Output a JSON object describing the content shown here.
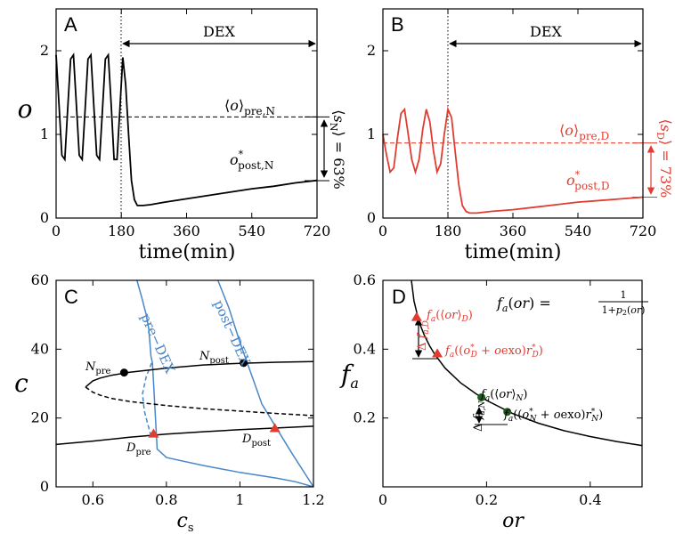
{
  "colors": {
    "black": "#000000",
    "red": "#e03c31",
    "blue": "#4a86c8",
    "green": "#1e5a1e"
  },
  "chart_data": [
    {
      "panel": "A",
      "type": "line",
      "xlabel": "time(min)",
      "ylabel": "o",
      "xlim": [
        0,
        720
      ],
      "ylim": [
        0,
        2.5
      ],
      "xticks": [
        "0",
        "180",
        "360",
        "540",
        "720"
      ],
      "yticks": [
        "0",
        "1",
        "2"
      ],
      "band_label": "DEX",
      "dex_start": 180,
      "series": [
        {
          "color": "#000000",
          "style": "solid",
          "x": [
            0,
            8,
            16,
            24,
            32,
            40,
            48,
            56,
            64,
            72,
            80,
            88,
            96,
            104,
            112,
            120,
            128,
            136,
            144,
            152,
            160,
            168,
            176,
            184,
            192,
            200,
            208,
            216,
            224,
            240,
            260,
            300,
            360,
            420,
            480,
            540,
            600,
            660,
            720
          ],
          "y": [
            1.95,
            1.35,
            0.75,
            0.7,
            1.3,
            1.9,
            1.95,
            1.35,
            0.75,
            0.7,
            1.3,
            1.9,
            1.95,
            1.35,
            0.75,
            0.7,
            1.3,
            1.9,
            1.95,
            1.35,
            0.7,
            0.7,
            1.3,
            1.92,
            1.6,
            1.0,
            0.45,
            0.22,
            0.15,
            0.15,
            0.16,
            0.19,
            0.23,
            0.27,
            0.31,
            0.35,
            0.38,
            0.42,
            0.45
          ]
        }
      ],
      "hlines": [
        {
          "y": 1.2,
          "style": "dashed"
        }
      ],
      "annotations": {
        "mean_label": "⟨o⟩pre,N",
        "post_label": "o*post,N",
        "pct_label": "⟨sN⟩ = 63%"
      },
      "arrow_range": [
        0.45,
        1.2
      ]
    },
    {
      "panel": "B",
      "type": "line",
      "xlabel": "time(min)",
      "xlim": [
        0,
        720
      ],
      "ylim": [
        0,
        2.5
      ],
      "xticks": [
        "0",
        "180",
        "360",
        "540",
        "720"
      ],
      "yticks": [
        "0",
        "1",
        "2"
      ],
      "band_label": "DEX",
      "dex_start": 180,
      "series": [
        {
          "color": "#e03c31",
          "style": "solid",
          "x": [
            0,
            10,
            20,
            30,
            40,
            50,
            60,
            70,
            80,
            90,
            100,
            110,
            120,
            130,
            140,
            150,
            160,
            170,
            180,
            190,
            200,
            210,
            220,
            230,
            240,
            260,
            300,
            360,
            420,
            480,
            540,
            600,
            660,
            720
          ],
          "y": [
            1.0,
            0.75,
            0.55,
            0.6,
            0.95,
            1.25,
            1.3,
            1.0,
            0.7,
            0.55,
            0.7,
            1.05,
            1.3,
            1.15,
            0.8,
            0.55,
            0.65,
            1.0,
            1.3,
            1.2,
            0.8,
            0.4,
            0.15,
            0.08,
            0.06,
            0.06,
            0.08,
            0.1,
            0.13,
            0.16,
            0.19,
            0.21,
            0.23,
            0.25
          ]
        }
      ],
      "hlines": [
        {
          "y": 0.9,
          "style": "dashed"
        }
      ],
      "annotations": {
        "mean_label": "⟨o⟩pre,D",
        "post_label": "o*post,D",
        "pct_label": "⟨sD⟩ = 73%"
      },
      "arrow_range": [
        0.25,
        0.9
      ]
    },
    {
      "panel": "C",
      "type": "line",
      "xlabel": "cs",
      "ylabel": "c",
      "xlim": [
        0.5,
        1.2
      ],
      "ylim": [
        0,
        60
      ],
      "xticks": [
        "0.6",
        "0.8",
        "1",
        "1.2"
      ],
      "yticks": [
        "0",
        "20",
        "40",
        "60"
      ],
      "series": [
        {
          "name": "pre−DEX",
          "color": "#4a86c8",
          "style": "solid",
          "x": [
            0.72,
            0.733,
            0.745,
            0.752,
            0.755,
            0.758,
            0.762,
            0.775,
            0.8,
            0.9,
            1.0,
            1.1,
            1.15,
            1.2
          ],
          "y": [
            60,
            55,
            50,
            46,
            42,
            38,
            36,
            11,
            8.5,
            6.2,
            4.2,
            2.5,
            1.5,
            0
          ]
        },
        {
          "name": "pre−DEX (unstable)",
          "color": "#4a86c8",
          "style": "dashed",
          "x": [
            0.76,
            0.745,
            0.735,
            0.74,
            0.75,
            0.76
          ],
          "y": [
            36,
            32,
            27,
            22,
            18,
            14
          ]
        },
        {
          "name": "post−DEX",
          "color": "#4a86c8",
          "style": "solid",
          "x": [
            0.94,
            0.97,
            1.0,
            1.03,
            1.06,
            1.1,
            1.14,
            1.2
          ],
          "y": [
            60,
            52,
            42,
            33,
            24,
            17,
            10,
            0
          ]
        },
        {
          "name": "upper-branch",
          "color": "#000000",
          "style": "solid",
          "x": [
            0.58,
            0.6,
            0.62,
            0.65,
            0.7,
            0.8,
            0.9,
            1.0,
            1.1,
            1.2
          ],
          "y": [
            29,
            30.8,
            31.6,
            32.4,
            33.3,
            34.5,
            35.4,
            35.9,
            36.2,
            36.4
          ]
        },
        {
          "name": "middle-branch",
          "color": "#000000",
          "style": "dashed",
          "x": [
            0.58,
            0.6,
            0.62,
            0.65,
            0.7,
            0.8,
            0.9,
            1.0,
            1.1,
            1.2
          ],
          "y": [
            29,
            27.5,
            26.6,
            25.7,
            24.8,
            23.6,
            22.7,
            22.0,
            21.3,
            20.7
          ]
        },
        {
          "name": "lower-branch",
          "color": "#000000",
          "style": "solid",
          "x": [
            0.5,
            0.6,
            0.7,
            0.8,
            0.9,
            1.0,
            1.1,
            1.2
          ],
          "y": [
            12.3,
            13.3,
            14.4,
            15.3,
            16.0,
            16.6,
            17.1,
            17.6
          ]
        }
      ],
      "points": [
        {
          "label": "Npre",
          "x": 0.685,
          "y": 33.2,
          "marker": "circle",
          "color": "#000000"
        },
        {
          "label": "Npost",
          "x": 1.01,
          "y": 36.0,
          "marker": "circle",
          "color": "#000000"
        },
        {
          "label": "Dpre",
          "x": 0.765,
          "y": 15.4,
          "marker": "triangle",
          "color": "#e03c31"
        },
        {
          "label": "Dpost",
          "x": 1.095,
          "y": 17.0,
          "marker": "triangle",
          "color": "#e03c31"
        }
      ],
      "curve_labels": {
        "pre": "pre−DEX",
        "post": "post−DEX"
      }
    },
    {
      "panel": "D",
      "type": "line",
      "xlabel": "or",
      "ylabel": "fa",
      "xlim": [
        0,
        0.5
      ],
      "ylim": [
        0,
        0.6
      ],
      "xticks": [
        "0",
        "0.2",
        "0.4"
      ],
      "yticks": [
        "0.2",
        "0.4",
        "0.6"
      ],
      "formula": "fa(or) = 1 / (1+p2(or))",
      "series": [
        {
          "color": "#000000",
          "style": "solid",
          "x": [
            0.055,
            0.06,
            0.07,
            0.08,
            0.09,
            0.1,
            0.12,
            0.15,
            0.18,
            0.2,
            0.25,
            0.3,
            0.35,
            0.4,
            0.45,
            0.5
          ],
          "y": [
            0.6,
            0.54,
            0.478,
            0.44,
            0.41,
            0.385,
            0.345,
            0.302,
            0.27,
            0.251,
            0.213,
            0.185,
            0.163,
            0.146,
            0.132,
            0.12
          ]
        }
      ],
      "points": [
        {
          "x": 0.065,
          "y": 0.493,
          "marker": "triangle",
          "color": "#e03c31",
          "label": "fa(⟨or⟩D)"
        },
        {
          "x": 0.105,
          "y": 0.387,
          "marker": "triangle",
          "color": "#e03c31",
          "label": "fa((o*D + oexo)r*D)"
        },
        {
          "x": 0.19,
          "y": 0.26,
          "marker": "circle",
          "color": "#1e5a1e",
          "label": "fa(⟨or⟩N)"
        },
        {
          "x": 0.24,
          "y": 0.218,
          "marker": "circle",
          "color": "#1e5a1e",
          "label": "fa((o*N + oexo)r*N)"
        }
      ],
      "delta_labels": {
        "D": "Δ fa,D",
        "N": "Δ fa,N"
      }
    }
  ]
}
